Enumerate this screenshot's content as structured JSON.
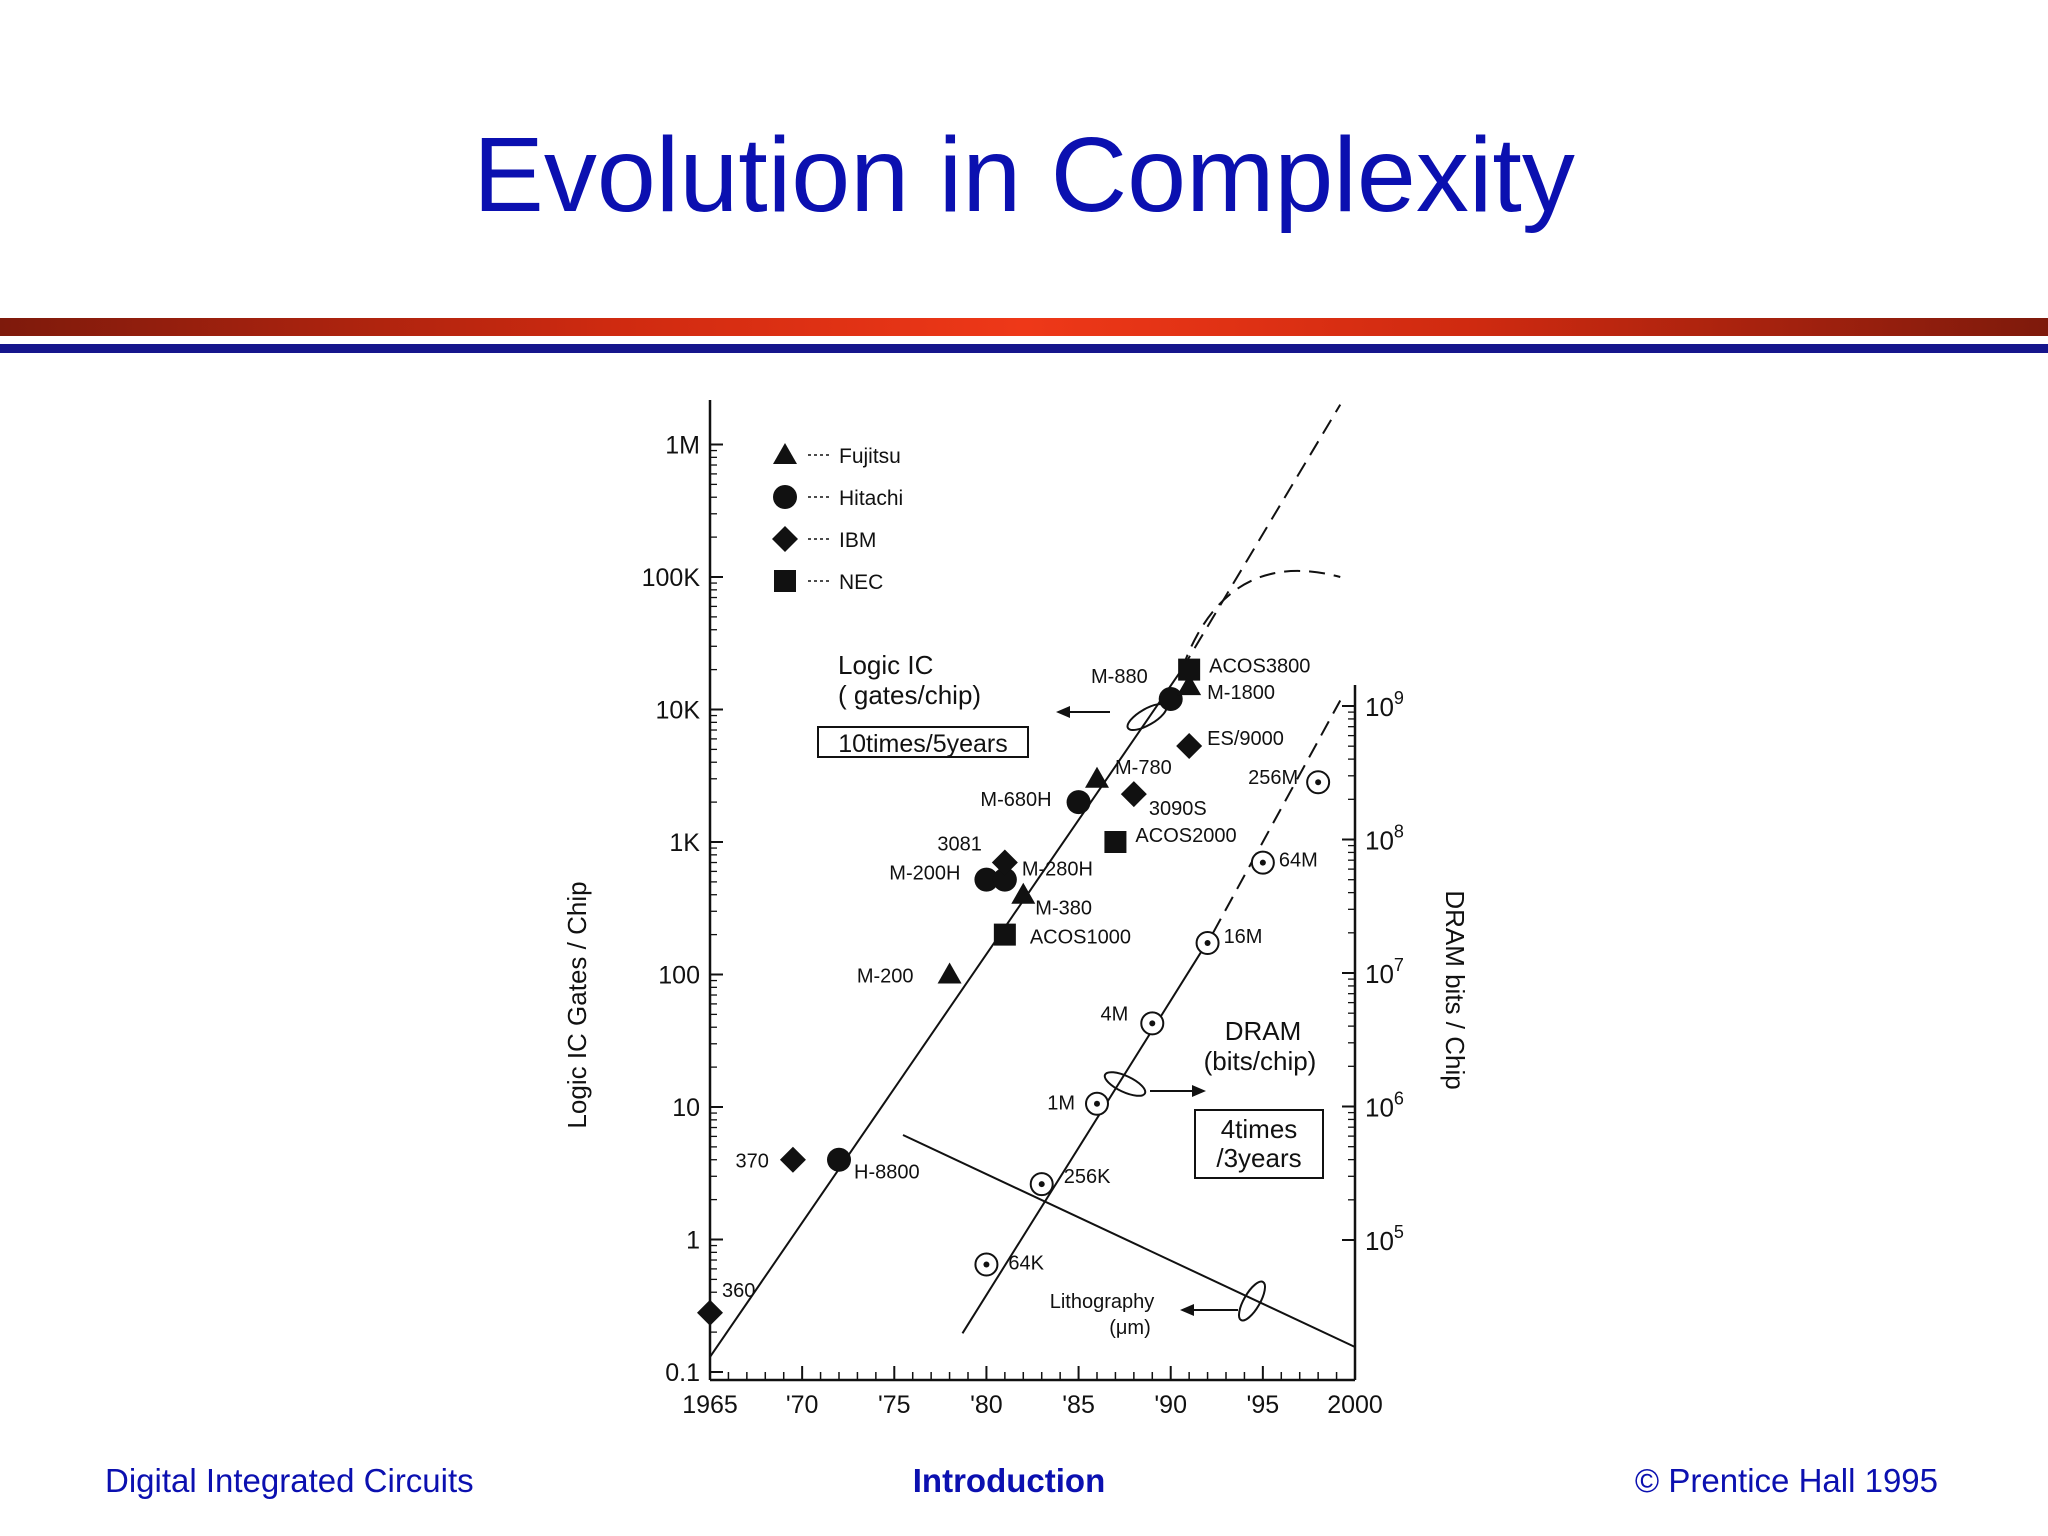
{
  "slide": {
    "title": "Evolution in Complexity",
    "title_color": "#0b10b0"
  },
  "footer": {
    "left": "Digital Integrated Circuits",
    "center": "Introduction",
    "right": "© Prentice Hall 1995"
  },
  "chart_data": {
    "type": "scatter",
    "x_axis": {
      "range": [
        1965,
        2000
      ],
      "ticks": [
        {
          "value": 1965,
          "label": "1965"
        },
        {
          "value": 1970,
          "label": "'70"
        },
        {
          "value": 1975,
          "label": "'75"
        },
        {
          "value": 1980,
          "label": "'80"
        },
        {
          "value": 1985,
          "label": "'85"
        },
        {
          "value": 1990,
          "label": "'90"
        },
        {
          "value": 1995,
          "label": "'95"
        },
        {
          "value": 2000,
          "label": "2000"
        }
      ]
    },
    "y_left": {
      "label": "Logic IC Gates / Chip",
      "scale": "log",
      "range": [
        0.1,
        2000000
      ],
      "ticks": [
        {
          "value": 0.1,
          "label": "0.1"
        },
        {
          "value": 1,
          "label": "1"
        },
        {
          "value": 10,
          "label": "10"
        },
        {
          "value": 100,
          "label": "100"
        },
        {
          "value": 1000,
          "label": "1K"
        },
        {
          "value": 10000,
          "label": "10K"
        },
        {
          "value": 100000,
          "label": "100K"
        },
        {
          "value": 1000000,
          "label": "1M"
        }
      ]
    },
    "y_right": {
      "label": "DRAM bits / Chip",
      "scale": "log",
      "ticks": [
        {
          "value": 100000,
          "base": "10",
          "exp": "5"
        },
        {
          "value": 1000000,
          "base": "10",
          "exp": "6"
        },
        {
          "value": 10000000,
          "base": "10",
          "exp": "7"
        },
        {
          "value": 100000000,
          "base": "10",
          "exp": "8"
        },
        {
          "value": 1000000000,
          "base": "10",
          "exp": "9"
        }
      ]
    },
    "legend": {
      "placement": "top-left",
      "entries": [
        {
          "marker": "triangle",
          "name": "Fujitsu"
        },
        {
          "marker": "circle",
          "name": "Hitachi"
        },
        {
          "marker": "diamond",
          "name": "IBM"
        },
        {
          "marker": "square",
          "name": "NEC"
        }
      ]
    },
    "logic_points": [
      {
        "label": "360",
        "company": "IBM",
        "x": 1965,
        "y": 0.28
      },
      {
        "label": "370",
        "company": "IBM",
        "x": 1969.5,
        "y": 4
      },
      {
        "label": "H-8800",
        "company": "Hitachi",
        "x": 1972,
        "y": 4
      },
      {
        "label": "M-200",
        "company": "Fujitsu",
        "x": 1978,
        "y": 100
      },
      {
        "label": "ACOS1000",
        "company": "NEC",
        "x": 1981,
        "y": 200
      },
      {
        "label": "M-380",
        "company": "Fujitsu",
        "x": 1982,
        "y": 400
      },
      {
        "label": "M-200H",
        "company": "Hitachi",
        "x": 1980,
        "y": 520
      },
      {
        "label": "M-280H",
        "company": "Hitachi",
        "x": 1981,
        "y": 520
      },
      {
        "label": "3081",
        "company": "IBM",
        "x": 1981,
        "y": 700
      },
      {
        "label": "ACOS2000",
        "company": "NEC",
        "x": 1987,
        "y": 1000
      },
      {
        "label": "M-680H",
        "company": "Hitachi",
        "x": 1985,
        "y": 2000
      },
      {
        "label": "3090S",
        "company": "IBM",
        "x": 1988,
        "y": 2300
      },
      {
        "label": "M-780",
        "company": "Fujitsu",
        "x": 1986,
        "y": 3000
      },
      {
        "label": "ES/9000",
        "company": "IBM",
        "x": 1991,
        "y": 5300
      },
      {
        "label": "M-880",
        "company": "Hitachi",
        "x": 1990,
        "y": 12000
      },
      {
        "label": "M-1800",
        "company": "Fujitsu",
        "x": 1991,
        "y": 15000
      },
      {
        "label": "ACOS3800",
        "company": "NEC",
        "x": 1991,
        "y": 20000
      }
    ],
    "dram_points": [
      {
        "label": "64K",
        "x": 1980,
        "bits": 65536
      },
      {
        "label": "256K",
        "x": 1983,
        "bits": 262144
      },
      {
        "label": "1M",
        "x": 1986,
        "bits": 1048576
      },
      {
        "label": "4M",
        "x": 1989,
        "bits": 4194304
      },
      {
        "label": "16M",
        "x": 1992,
        "bits": 16777216
      },
      {
        "label": "64M",
        "x": 1995,
        "bits": 67108864
      },
      {
        "label": "256M",
        "x": 1998,
        "bits": 268435456
      }
    ],
    "annotations": {
      "logic_line1": "Logic IC",
      "logic_line2": "( gates/chip)",
      "logic_rate": "10times/5years",
      "dram_line1": "DRAM",
      "dram_line2": "(bits/chip)",
      "dram_rate1": "4times",
      "dram_rate2": "/3years",
      "litho_line1": "Lithography",
      "litho_line2": "(μm)"
    }
  }
}
